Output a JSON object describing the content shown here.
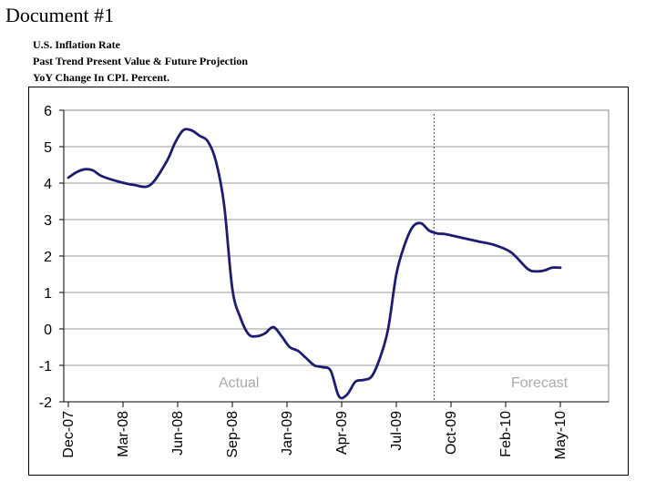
{
  "document": {
    "title": "Document #1"
  },
  "chart_data": {
    "type": "line",
    "title_lines": [
      "U.S. Inflation Rate",
      "Past Trend Present Value & Future Projection",
      "YoY Change In CPI. Percent."
    ],
    "ylim": [
      -2,
      6
    ],
    "yticks": [
      "6",
      "5",
      "4",
      "3",
      "2",
      "1",
      "0",
      "-1",
      "-2"
    ],
    "xtick_labels": [
      "Dec-07",
      "Mar-08",
      "Jun-08",
      "Sep-08",
      "Jan-09",
      "Apr-09",
      "Jul-09",
      "Oct-09",
      "Feb-10",
      "May-10"
    ],
    "grid": true,
    "forecast_divider_month": 22.3,
    "annotations": {
      "actual": "Actual",
      "forecast": "Forecast"
    },
    "line_color": "#1c1c70",
    "divider_color": "#666666",
    "series": [
      {
        "x": [
          0,
          0.5,
          1,
          1.5,
          2,
          3,
          4,
          5,
          6,
          6.5,
          7,
          7.5,
          8,
          8.5,
          9,
          9.5,
          10,
          10.5,
          11,
          11.5,
          12,
          12.5,
          13,
          13.5,
          14,
          14.5,
          15,
          15.5,
          16,
          16.5,
          17,
          17.5,
          18,
          18.5,
          19,
          19.5,
          20,
          20.5,
          21,
          21.5,
          22,
          22.5,
          23,
          24,
          25,
          26,
          27,
          28,
          28.5,
          29,
          29.5,
          30
        ],
        "y": [
          4.15,
          4.3,
          4.38,
          4.35,
          4.2,
          4.05,
          3.95,
          3.95,
          4.6,
          5.1,
          5.45,
          5.45,
          5.3,
          5.15,
          4.6,
          3.4,
          1.1,
          0.3,
          -0.15,
          -0.2,
          -0.12,
          0.05,
          -0.2,
          -0.5,
          -0.6,
          -0.8,
          -1.0,
          -1.05,
          -1.15,
          -1.85,
          -1.8,
          -1.45,
          -1.4,
          -1.3,
          -0.8,
          0.0,
          1.5,
          2.3,
          2.8,
          2.9,
          2.7,
          2.62,
          2.6,
          2.5,
          2.4,
          2.3,
          2.1,
          1.65,
          1.58,
          1.6,
          1.68,
          1.68
        ]
      }
    ]
  }
}
